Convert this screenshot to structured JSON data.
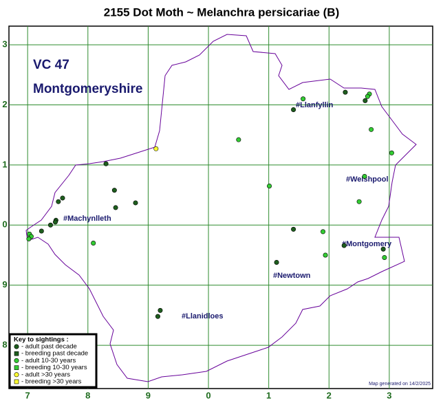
{
  "title": "2155 Dot Moth ~ Melanchra persicariae (B)",
  "vc": "VC 47",
  "county": "Montgomeryshire",
  "towns": [
    "#Llanfyllin",
    "#Welshpool",
    "#Machynlleth",
    "#Montgomery",
    "#Newtown",
    "#Llanidloes"
  ],
  "footer": "Map generated on 14/2/2025",
  "xlim": [
    -0.31,
    6.72
  ],
  "ylim": [
    -0.72,
    5.31
  ],
  "xticks": [
    {
      "value": 0,
      "label": "7"
    },
    {
      "value": 1,
      "label": "8"
    },
    {
      "value": 2,
      "label": "9"
    },
    {
      "value": 3,
      "label": "0"
    },
    {
      "value": 4,
      "label": "1"
    },
    {
      "value": 5,
      "label": "2"
    },
    {
      "value": 6,
      "label": "3"
    }
  ],
  "yticks": [
    {
      "value": 0,
      "label": "8"
    },
    {
      "value": 1,
      "label": "9"
    },
    {
      "value": 2,
      "label": "0"
    },
    {
      "value": 3,
      "label": "1"
    },
    {
      "value": 4,
      "label": "2"
    },
    {
      "value": 5,
      "label": "3"
    }
  ],
  "key": {
    "title": "Key to sightings :",
    "entries": [
      {
        "label": "- adult past decade",
        "shape": "circle",
        "color": "#1e5e1e",
        "points": [
          [
            1.3,
            3.02
          ],
          [
            1.44,
            2.58
          ],
          [
            1.46,
            2.29
          ],
          [
            1.79,
            2.37
          ],
          [
            0.58,
            2.45
          ],
          [
            0.51,
            2.39
          ],
          [
            0.47,
            2.08
          ],
          [
            0.38,
            2.0
          ],
          [
            0.23,
            1.9
          ],
          [
            0.46,
            2.05
          ],
          [
            4.41,
            3.92
          ],
          [
            5.27,
            4.21
          ],
          [
            5.6,
            4.07
          ],
          [
            4.41,
            1.93
          ],
          [
            4.13,
            1.38
          ],
          [
            5.25,
            1.66
          ],
          [
            5.9,
            1.6
          ],
          [
            2.2,
            0.58
          ],
          [
            2.16,
            0.48
          ]
        ]
      },
      {
        "label": "- breeding past decade",
        "shape": "square",
        "color": "#1e5e1e",
        "points": []
      },
      {
        "label": "- adult 10-30 years",
        "shape": "circle",
        "color": "#33cc33",
        "points": [
          [
            4.57,
            4.1
          ],
          [
            5.67,
            4.18
          ],
          [
            5.64,
            4.14
          ],
          [
            5.7,
            3.59
          ],
          [
            6.04,
            3.2
          ],
          [
            3.5,
            3.42
          ],
          [
            4.01,
            2.65
          ],
          [
            5.59,
            2.81
          ],
          [
            5.5,
            2.39
          ],
          [
            4.9,
            1.89
          ],
          [
            4.94,
            1.5
          ],
          [
            5.92,
            1.46
          ],
          [
            1.09,
            1.7
          ],
          [
            0.03,
            1.85
          ],
          [
            0.06,
            1.81
          ],
          [
            0.02,
            1.77
          ]
        ]
      },
      {
        "label": "- breeding 10-30 years",
        "shape": "square",
        "color": "#33cc33",
        "points": []
      },
      {
        "label": "- adult >30 years",
        "shape": "circle",
        "color": "#ffff33",
        "points": [
          [
            2.13,
            3.27
          ]
        ]
      },
      {
        "label": "- breeding >30 years",
        "shape": "square",
        "color": "#ffff33",
        "points": []
      }
    ]
  }
}
